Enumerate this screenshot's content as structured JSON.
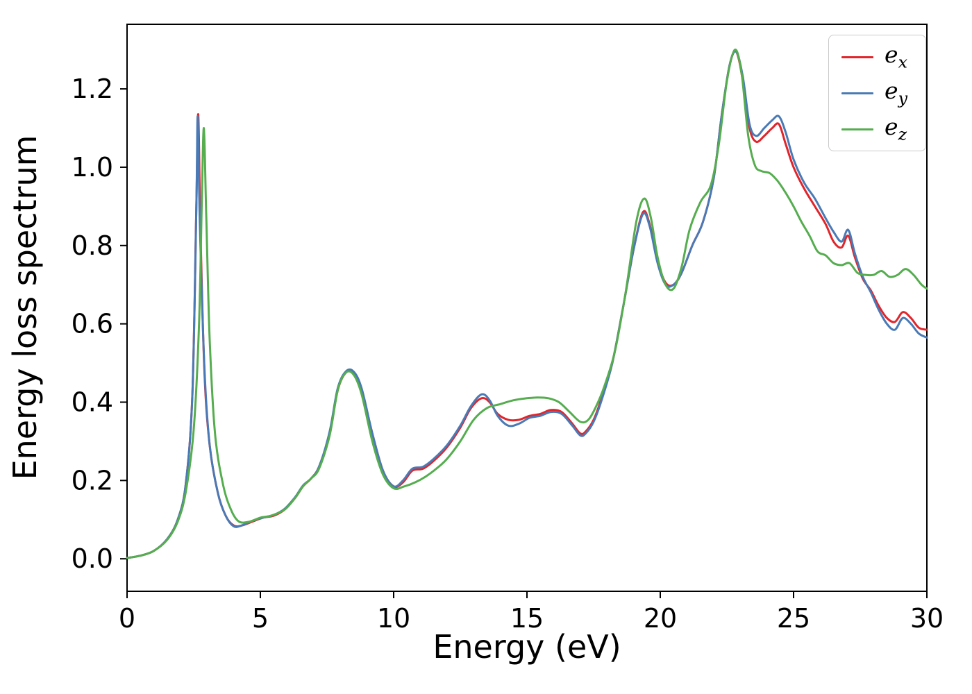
{
  "figure": {
    "background": "#ffffff",
    "axes_color": "#000000",
    "tick_color": "#000000"
  },
  "chart_data": {
    "type": "line",
    "title": "",
    "xlabel": "Energy (eV)",
    "ylabel": "Energy loss spectrum",
    "xlim": [
      0,
      30
    ],
    "ylim": [
      -0.083,
      1.365
    ],
    "grid": false,
    "legend_position": "upper right",
    "xticks": [
      {
        "value": 0,
        "label": "0"
      },
      {
        "value": 5,
        "label": "5"
      },
      {
        "value": 10,
        "label": "10"
      },
      {
        "value": 15,
        "label": "15"
      },
      {
        "value": 20,
        "label": "20"
      },
      {
        "value": 25,
        "label": "25"
      },
      {
        "value": 30,
        "label": "30"
      }
    ],
    "yticks": [
      {
        "value": 0.0,
        "label": "0.0"
      },
      {
        "value": 0.2,
        "label": "0.2"
      },
      {
        "value": 0.4,
        "label": "0.4"
      },
      {
        "value": 0.6,
        "label": "0.6"
      },
      {
        "value": 0.8,
        "label": "0.8"
      },
      {
        "value": 1.0,
        "label": "1.0"
      },
      {
        "value": 1.2,
        "label": "1.2"
      }
    ],
    "series": [
      {
        "name": "e_x",
        "color": "#e0252b",
        "points": [
          [
            0,
            0.002
          ],
          [
            0.5,
            0.008
          ],
          [
            1,
            0.02
          ],
          [
            1.5,
            0.05
          ],
          [
            1.9,
            0.1
          ],
          [
            2.2,
            0.19
          ],
          [
            2.45,
            0.42
          ],
          [
            2.6,
            0.9
          ],
          [
            2.67,
            1.135
          ],
          [
            2.75,
            0.85
          ],
          [
            2.9,
            0.48
          ],
          [
            3.1,
            0.29
          ],
          [
            3.4,
            0.17
          ],
          [
            3.7,
            0.11
          ],
          [
            4.0,
            0.085
          ],
          [
            4.3,
            0.085
          ],
          [
            4.7,
            0.095
          ],
          [
            5.1,
            0.105
          ],
          [
            5.5,
            0.11
          ],
          [
            5.9,
            0.125
          ],
          [
            6.3,
            0.155
          ],
          [
            6.6,
            0.185
          ],
          [
            6.9,
            0.205
          ],
          [
            7.2,
            0.235
          ],
          [
            7.6,
            0.32
          ],
          [
            7.9,
            0.43
          ],
          [
            8.2,
            0.475
          ],
          [
            8.5,
            0.475
          ],
          [
            8.8,
            0.43
          ],
          [
            9.2,
            0.32
          ],
          [
            9.6,
            0.225
          ],
          [
            10.0,
            0.185
          ],
          [
            10.35,
            0.195
          ],
          [
            10.7,
            0.225
          ],
          [
            11.1,
            0.23
          ],
          [
            11.5,
            0.25
          ],
          [
            12.0,
            0.285
          ],
          [
            12.5,
            0.335
          ],
          [
            12.9,
            0.385
          ],
          [
            13.3,
            0.41
          ],
          [
            13.6,
            0.4
          ],
          [
            13.9,
            0.37
          ],
          [
            14.3,
            0.355
          ],
          [
            14.7,
            0.355
          ],
          [
            15.1,
            0.365
          ],
          [
            15.5,
            0.37
          ],
          [
            15.9,
            0.38
          ],
          [
            16.3,
            0.375
          ],
          [
            16.7,
            0.345
          ],
          [
            17.0,
            0.32
          ],
          [
            17.2,
            0.325
          ],
          [
            17.5,
            0.355
          ],
          [
            17.8,
            0.41
          ],
          [
            18.2,
            0.5
          ],
          [
            18.6,
            0.64
          ],
          [
            19.0,
            0.79
          ],
          [
            19.35,
            0.885
          ],
          [
            19.6,
            0.855
          ],
          [
            19.9,
            0.76
          ],
          [
            20.2,
            0.705
          ],
          [
            20.5,
            0.7
          ],
          [
            20.8,
            0.73
          ],
          [
            21.2,
            0.8
          ],
          [
            21.6,
            0.86
          ],
          [
            22.0,
            0.97
          ],
          [
            22.3,
            1.13
          ],
          [
            22.6,
            1.26
          ],
          [
            22.85,
            1.295
          ],
          [
            23.1,
            1.22
          ],
          [
            23.35,
            1.1
          ],
          [
            23.6,
            1.065
          ],
          [
            23.9,
            1.08
          ],
          [
            24.2,
            1.1
          ],
          [
            24.45,
            1.11
          ],
          [
            24.7,
            1.06
          ],
          [
            25.0,
            1.0
          ],
          [
            25.4,
            0.945
          ],
          [
            25.8,
            0.9
          ],
          [
            26.2,
            0.855
          ],
          [
            26.5,
            0.81
          ],
          [
            26.8,
            0.795
          ],
          [
            27.05,
            0.825
          ],
          [
            27.3,
            0.77
          ],
          [
            27.6,
            0.715
          ],
          [
            27.9,
            0.685
          ],
          [
            28.2,
            0.645
          ],
          [
            28.5,
            0.615
          ],
          [
            28.8,
            0.605
          ],
          [
            29.1,
            0.63
          ],
          [
            29.4,
            0.615
          ],
          [
            29.7,
            0.59
          ],
          [
            30,
            0.585
          ]
        ]
      },
      {
        "name": "e_y",
        "color": "#4a7ab5",
        "points": [
          [
            0,
            0.002
          ],
          [
            0.5,
            0.008
          ],
          [
            1,
            0.02
          ],
          [
            1.5,
            0.05
          ],
          [
            1.9,
            0.1
          ],
          [
            2.2,
            0.19
          ],
          [
            2.45,
            0.42
          ],
          [
            2.6,
            0.9
          ],
          [
            2.65,
            1.13
          ],
          [
            2.73,
            0.86
          ],
          [
            2.9,
            0.49
          ],
          [
            3.1,
            0.29
          ],
          [
            3.4,
            0.17
          ],
          [
            3.7,
            0.11
          ],
          [
            4.0,
            0.083
          ],
          [
            4.3,
            0.085
          ],
          [
            4.7,
            0.097
          ],
          [
            5.1,
            0.105
          ],
          [
            5.5,
            0.112
          ],
          [
            5.9,
            0.127
          ],
          [
            6.3,
            0.157
          ],
          [
            6.6,
            0.187
          ],
          [
            6.9,
            0.205
          ],
          [
            7.2,
            0.235
          ],
          [
            7.6,
            0.325
          ],
          [
            7.9,
            0.435
          ],
          [
            8.2,
            0.478
          ],
          [
            8.5,
            0.478
          ],
          [
            8.8,
            0.435
          ],
          [
            9.2,
            0.32
          ],
          [
            9.6,
            0.225
          ],
          [
            10.0,
            0.185
          ],
          [
            10.35,
            0.2
          ],
          [
            10.7,
            0.23
          ],
          [
            11.1,
            0.235
          ],
          [
            11.5,
            0.255
          ],
          [
            12.0,
            0.29
          ],
          [
            12.5,
            0.34
          ],
          [
            12.9,
            0.39
          ],
          [
            13.3,
            0.42
          ],
          [
            13.6,
            0.405
          ],
          [
            13.9,
            0.365
          ],
          [
            14.3,
            0.34
          ],
          [
            14.7,
            0.345
          ],
          [
            15.1,
            0.36
          ],
          [
            15.5,
            0.365
          ],
          [
            15.9,
            0.375
          ],
          [
            16.3,
            0.37
          ],
          [
            16.7,
            0.34
          ],
          [
            17.0,
            0.315
          ],
          [
            17.2,
            0.32
          ],
          [
            17.5,
            0.35
          ],
          [
            17.8,
            0.405
          ],
          [
            18.2,
            0.5
          ],
          [
            18.6,
            0.64
          ],
          [
            19.0,
            0.79
          ],
          [
            19.35,
            0.88
          ],
          [
            19.6,
            0.85
          ],
          [
            19.9,
            0.755
          ],
          [
            20.2,
            0.7
          ],
          [
            20.5,
            0.7
          ],
          [
            20.8,
            0.73
          ],
          [
            21.2,
            0.8
          ],
          [
            21.6,
            0.86
          ],
          [
            22.0,
            0.97
          ],
          [
            22.3,
            1.13
          ],
          [
            22.6,
            1.26
          ],
          [
            22.85,
            1.295
          ],
          [
            23.1,
            1.23
          ],
          [
            23.35,
            1.11
          ],
          [
            23.6,
            1.08
          ],
          [
            23.9,
            1.1
          ],
          [
            24.2,
            1.12
          ],
          [
            24.45,
            1.13
          ],
          [
            24.7,
            1.09
          ],
          [
            25.0,
            1.02
          ],
          [
            25.4,
            0.96
          ],
          [
            25.8,
            0.92
          ],
          [
            26.2,
            0.87
          ],
          [
            26.5,
            0.835
          ],
          [
            26.8,
            0.81
          ],
          [
            27.05,
            0.84
          ],
          [
            27.3,
            0.78
          ],
          [
            27.6,
            0.72
          ],
          [
            27.9,
            0.68
          ],
          [
            28.2,
            0.635
          ],
          [
            28.5,
            0.6
          ],
          [
            28.8,
            0.585
          ],
          [
            29.1,
            0.615
          ],
          [
            29.4,
            0.6
          ],
          [
            29.7,
            0.575
          ],
          [
            30,
            0.565
          ]
        ]
      },
      {
        "name": "e_z",
        "color": "#55ad4f",
        "points": [
          [
            0,
            0.002
          ],
          [
            0.5,
            0.008
          ],
          [
            1,
            0.02
          ],
          [
            1.5,
            0.048
          ],
          [
            1.9,
            0.095
          ],
          [
            2.2,
            0.17
          ],
          [
            2.5,
            0.33
          ],
          [
            2.7,
            0.6
          ],
          [
            2.8,
            0.9
          ],
          [
            2.88,
            1.1
          ],
          [
            2.97,
            0.88
          ],
          [
            3.1,
            0.56
          ],
          [
            3.3,
            0.32
          ],
          [
            3.6,
            0.19
          ],
          [
            3.9,
            0.125
          ],
          [
            4.2,
            0.095
          ],
          [
            4.6,
            0.095
          ],
          [
            5.0,
            0.105
          ],
          [
            5.4,
            0.11
          ],
          [
            5.9,
            0.125
          ],
          [
            6.3,
            0.155
          ],
          [
            6.6,
            0.185
          ],
          [
            6.9,
            0.205
          ],
          [
            7.2,
            0.23
          ],
          [
            7.6,
            0.315
          ],
          [
            7.9,
            0.43
          ],
          [
            8.2,
            0.475
          ],
          [
            8.5,
            0.47
          ],
          [
            8.8,
            0.42
          ],
          [
            9.2,
            0.3
          ],
          [
            9.6,
            0.215
          ],
          [
            10.0,
            0.18
          ],
          [
            10.4,
            0.185
          ],
          [
            10.8,
            0.195
          ],
          [
            11.2,
            0.21
          ],
          [
            11.6,
            0.23
          ],
          [
            12.0,
            0.255
          ],
          [
            12.5,
            0.3
          ],
          [
            13.0,
            0.355
          ],
          [
            13.5,
            0.385
          ],
          [
            14.0,
            0.395
          ],
          [
            14.5,
            0.405
          ],
          [
            15.0,
            0.41
          ],
          [
            15.4,
            0.412
          ],
          [
            15.8,
            0.41
          ],
          [
            16.2,
            0.4
          ],
          [
            16.6,
            0.375
          ],
          [
            17.0,
            0.35
          ],
          [
            17.3,
            0.355
          ],
          [
            17.6,
            0.39
          ],
          [
            17.9,
            0.44
          ],
          [
            18.3,
            0.53
          ],
          [
            18.7,
            0.68
          ],
          [
            19.1,
            0.86
          ],
          [
            19.4,
            0.92
          ],
          [
            19.65,
            0.87
          ],
          [
            19.9,
            0.77
          ],
          [
            20.2,
            0.7
          ],
          [
            20.5,
            0.69
          ],
          [
            20.8,
            0.745
          ],
          [
            21.1,
            0.84
          ],
          [
            21.5,
            0.91
          ],
          [
            21.9,
            0.955
          ],
          [
            22.2,
            1.06
          ],
          [
            22.5,
            1.22
          ],
          [
            22.8,
            1.3
          ],
          [
            23.05,
            1.24
          ],
          [
            23.3,
            1.08
          ],
          [
            23.55,
            1.005
          ],
          [
            23.8,
            0.99
          ],
          [
            24.1,
            0.985
          ],
          [
            24.4,
            0.965
          ],
          [
            24.7,
            0.935
          ],
          [
            25.0,
            0.9
          ],
          [
            25.3,
            0.86
          ],
          [
            25.6,
            0.825
          ],
          [
            25.9,
            0.785
          ],
          [
            26.2,
            0.775
          ],
          [
            26.5,
            0.755
          ],
          [
            26.8,
            0.75
          ],
          [
            27.1,
            0.755
          ],
          [
            27.4,
            0.73
          ],
          [
            27.7,
            0.725
          ],
          [
            28.0,
            0.725
          ],
          [
            28.3,
            0.735
          ],
          [
            28.6,
            0.72
          ],
          [
            28.9,
            0.725
          ],
          [
            29.2,
            0.74
          ],
          [
            29.5,
            0.725
          ],
          [
            29.8,
            0.7
          ],
          [
            30,
            0.69
          ]
        ]
      }
    ]
  }
}
